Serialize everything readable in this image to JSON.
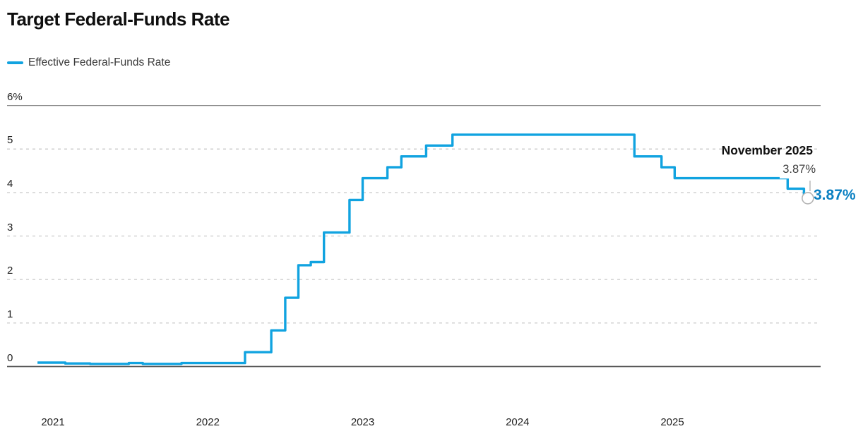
{
  "title": "Target Federal-Funds Rate",
  "legend": {
    "label": "Effective Federal-Funds Rate"
  },
  "annotations": {
    "date_label": "November 2025",
    "callout_value": "3.87%",
    "end_value": "3.87%"
  },
  "colors": {
    "line": "#11a3e0",
    "end_value_text": "#0a80c2",
    "grid_dashed": "#cfcfcf",
    "grid_top": "#8f8f8f",
    "grid_zero": "#5a5a5a",
    "marker_ring": "#b4b4b4",
    "pointer": "#b4b4b4"
  },
  "chart_data": {
    "type": "line",
    "title": "Target Federal-Funds Rate",
    "subtype": "step",
    "grid": "horizontal-dashed",
    "legend_position": "top-left",
    "ylim": [
      0,
      6
    ],
    "xlim": [
      2020.9,
      2025.95
    ],
    "ylabel": "%",
    "xlabel": "",
    "y_ticks": [
      {
        "value": 6,
        "label": "6%"
      },
      {
        "value": 5,
        "label": "5"
      },
      {
        "value": 4,
        "label": "4"
      },
      {
        "value": 3,
        "label": "3"
      },
      {
        "value": 2,
        "label": "2"
      },
      {
        "value": 1,
        "label": "1"
      },
      {
        "value": 0,
        "label": "0"
      }
    ],
    "x_ticks": [
      {
        "value": 2021,
        "label": "2021"
      },
      {
        "value": 2022,
        "label": "2022"
      },
      {
        "value": 2023,
        "label": "2023"
      },
      {
        "value": 2024,
        "label": "2024"
      },
      {
        "value": 2025,
        "label": "2025"
      }
    ],
    "series": [
      {
        "name": "Effective Federal-Funds Rate",
        "points": [
          [
            2020.9,
            0.09
          ],
          [
            2021.08,
            0.07
          ],
          [
            2021.24,
            0.06
          ],
          [
            2021.49,
            0.08
          ],
          [
            2021.58,
            0.06
          ],
          [
            2021.83,
            0.08
          ],
          [
            2022.24,
            0.33
          ],
          [
            2022.41,
            0.83
          ],
          [
            2022.5,
            1.58
          ],
          [
            2022.585,
            2.33
          ],
          [
            2022.665,
            2.4
          ],
          [
            2022.75,
            3.08
          ],
          [
            2022.915,
            3.83
          ],
          [
            2023.0,
            4.33
          ],
          [
            2023.16,
            4.58
          ],
          [
            2023.25,
            4.83
          ],
          [
            2023.41,
            5.08
          ],
          [
            2023.58,
            5.33
          ],
          [
            2024.755,
            4.83
          ],
          [
            2024.93,
            4.58
          ],
          [
            2025.015,
            4.33
          ],
          [
            2025.745,
            4.09
          ],
          [
            2025.85,
            3.87
          ]
        ]
      }
    ],
    "end_marker": {
      "t": 2025.875,
      "value": 3.87,
      "label": "3.87%",
      "date": "November 2025"
    }
  }
}
